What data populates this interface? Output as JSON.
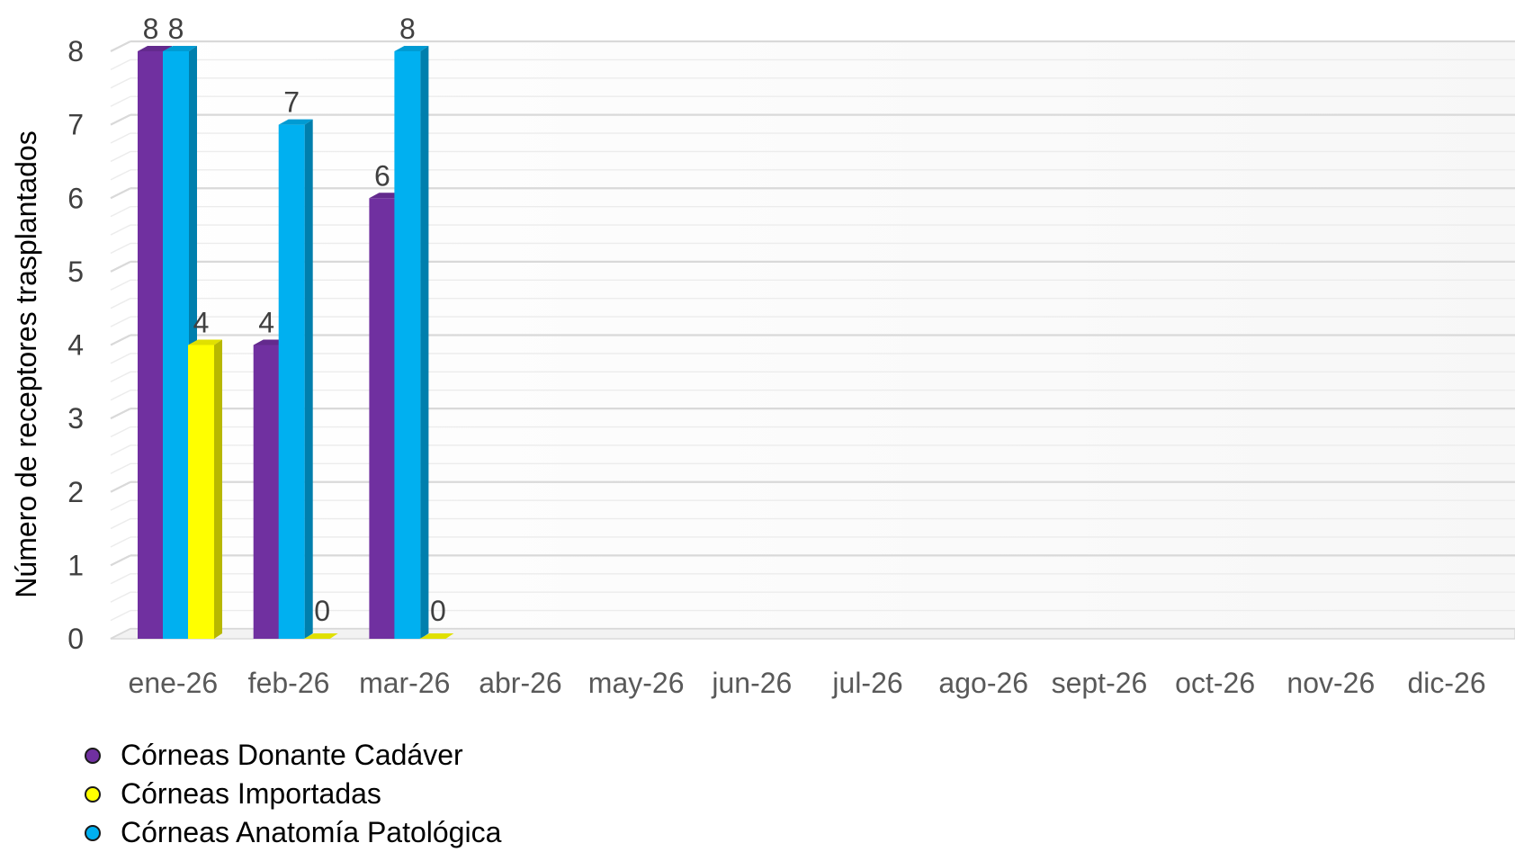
{
  "chart_data": {
    "type": "bar",
    "ylabel": "Número de receptores trasplantados",
    "ylim": [
      0,
      8
    ],
    "y_ticks": [
      "0",
      "1",
      "2",
      "3",
      "4",
      "5",
      "6",
      "7",
      "8"
    ],
    "categories": [
      "ene-26",
      "feb-26",
      "mar-26",
      "abr-26",
      "may-26",
      "jun-26",
      "jul-26",
      "ago-26",
      "sept-26",
      "oct-26",
      "nov-26",
      "dic-26"
    ],
    "grid": true,
    "legend_position": "bottom-left",
    "series": [
      {
        "name": "Córneas Donante Cadáver",
        "color": "#7030a0",
        "values": [
          8,
          4,
          6,
          null,
          null,
          null,
          null,
          null,
          null,
          null,
          null,
          null
        ]
      },
      {
        "name": "Córneas Anatomía Patológica",
        "color": "#00b0f0",
        "values": [
          8,
          7,
          8,
          null,
          null,
          null,
          null,
          null,
          null,
          null,
          null,
          null
        ]
      },
      {
        "name": "Córneas Importadas",
        "color": "#ffff00",
        "values": [
          4,
          0,
          0,
          null,
          null,
          null,
          null,
          null,
          null,
          null,
          null,
          null
        ]
      }
    ],
    "legend_order": [
      "Córneas Donante Cadáver",
      "Córneas Importadas",
      "Córneas Anatomía Patológica"
    ]
  }
}
